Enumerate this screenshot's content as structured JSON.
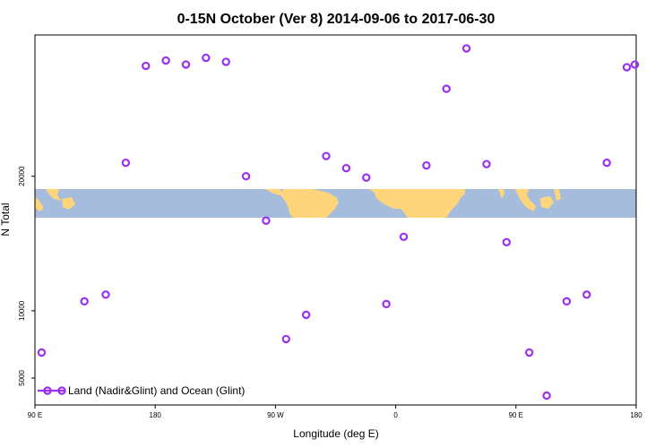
{
  "chart_data": {
    "type": "scatter",
    "title": "0-15N October (Ver 8)   2014-09-06 to 2017-06-30",
    "xlabel": "Longitude (deg E)",
    "ylabel": "N Total",
    "x_ticks": [
      {
        "value": 90,
        "label": "90 E"
      },
      {
        "value": 180,
        "label": "180"
      },
      {
        "value": 270,
        "label": "90 W"
      },
      {
        "value": 360,
        "label": "0"
      },
      {
        "value": 450,
        "label": "90 E"
      },
      {
        "value": 540,
        "label": "180"
      }
    ],
    "y_ticks": [
      5000,
      10000,
      20000
    ],
    "xlim": [
      90,
      540
    ],
    "ylim": [
      3000,
      30500
    ],
    "grid": false,
    "legend": {
      "position": "bottom-left",
      "label": "Land (Nadir&Glint) and Ocean (Glint)"
    },
    "background_map_band": {
      "lat_range": "0-15N",
      "ocean_color": "#a6bcdc",
      "land_color": "#fed57a"
    },
    "series": [
      {
        "name": "Land (Nadir&Glint) and Ocean (Glint)",
        "color": "#9b30f0",
        "x": [
          95,
          127,
          143,
          158,
          173,
          188,
          203,
          218,
          233,
          248,
          263,
          278,
          293,
          308,
          323,
          338,
          353,
          366,
          383,
          398,
          413,
          428,
          443,
          460,
          473,
          488,
          503,
          518,
          533,
          539
        ],
        "y": [
          6900,
          10700,
          11200,
          21000,
          28200,
          28600,
          28300,
          28800,
          28500,
          20000,
          16700,
          7900,
          9700,
          21500,
          20600,
          19900,
          10500,
          15500,
          20800,
          26500,
          29500,
          20900,
          15100,
          6900,
          3700,
          10700,
          11200,
          21000,
          28100,
          28300
        ]
      }
    ]
  }
}
